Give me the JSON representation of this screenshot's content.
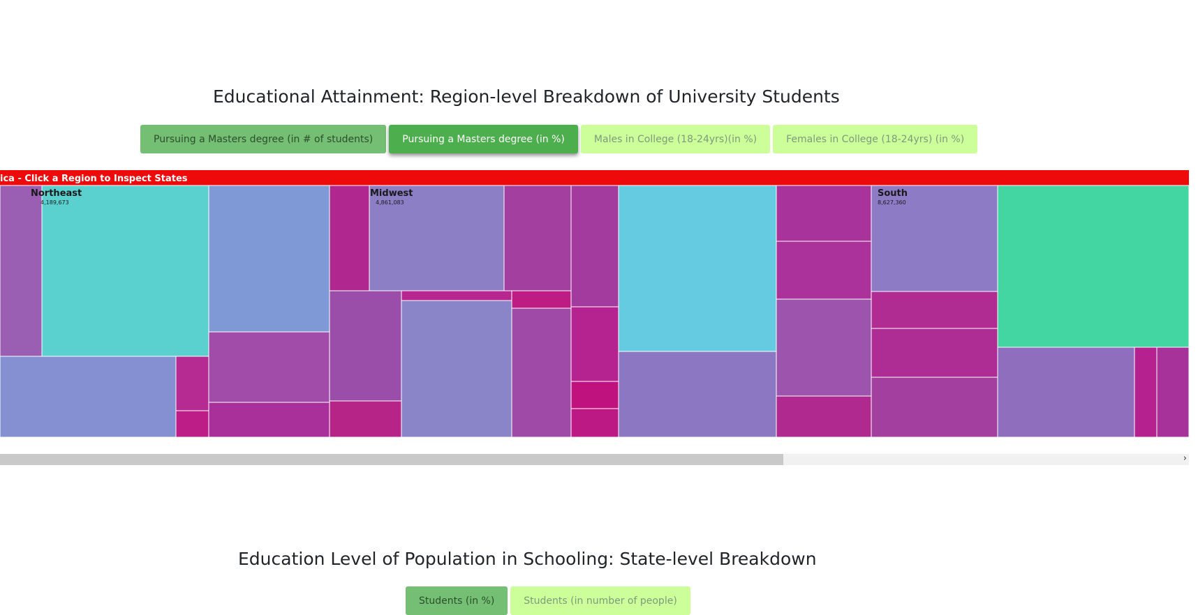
{
  "section1": {
    "title": "Educational Attainment: Region-level Breakdown of University Students",
    "buttons": [
      {
        "label": "Pursuing a Masters degree (in # of students)"
      },
      {
        "label": "Pursuing a Masters degree (in %)"
      },
      {
        "label": "Males in College (18-24yrs)(in %)"
      },
      {
        "label": "Females in College (18-24yrs) (in %)"
      }
    ]
  },
  "section2": {
    "title": "Education Level of Population in Schooling: State-level Breakdown",
    "buttons": [
      {
        "label": "Students (in %)"
      },
      {
        "label": "Students (in number of people)"
      }
    ]
  },
  "chart_data": {
    "type": "treemap",
    "header": "ica - Click a Region to Inspect States",
    "regions": [
      {
        "name": "Northeast",
        "value": "4,189,673"
      },
      {
        "name": "Midwest",
        "value": "4,861,083"
      },
      {
        "name": "South",
        "value": "8,627,360"
      }
    ]
  },
  "colors": {
    "header_bar": "#ee0a0a",
    "button_dark": "#74bf74",
    "button_active": "#4cae4c",
    "button_light": "#ccff99"
  }
}
